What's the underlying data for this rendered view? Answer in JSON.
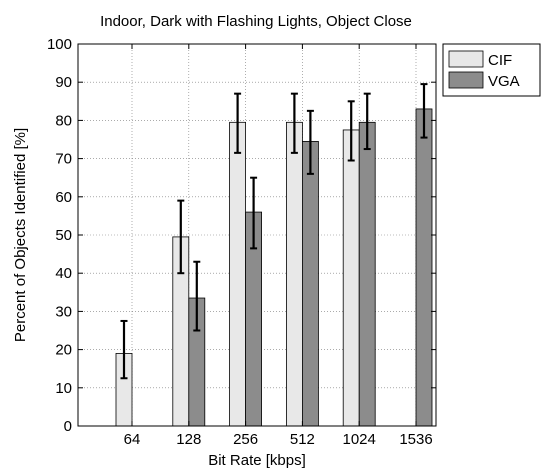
{
  "chart_data": {
    "type": "bar",
    "title": "Indoor, Dark with Flashing Lights, Object Close",
    "xlabel": "Bit Rate [kbps]",
    "ylabel": "Percent of Objects Identified [%]",
    "ylim": [
      0,
      100
    ],
    "yticks": [
      0,
      10,
      20,
      30,
      40,
      50,
      60,
      70,
      80,
      90,
      100
    ],
    "categories": [
      "64",
      "128",
      "256",
      "512",
      "1024",
      "1536"
    ],
    "grid": true,
    "legend": "outside-top-right",
    "series": [
      {
        "name": "CIF",
        "color": "#e8e8e8",
        "values": [
          19,
          49.5,
          79.5,
          79.5,
          77.5,
          null
        ],
        "err_low": [
          12.5,
          40,
          71.5,
          71.5,
          69.5,
          null
        ],
        "err_high": [
          27.5,
          59,
          87,
          87,
          85,
          null
        ]
      },
      {
        "name": "VGA",
        "color": "#8c8c8c",
        "values": [
          null,
          33.5,
          56,
          74.5,
          79.5,
          83
        ],
        "err_low": [
          null,
          25,
          46.5,
          66,
          72.5,
          75.5
        ],
        "err_high": [
          null,
          43,
          65,
          82.5,
          87,
          89.5
        ]
      }
    ]
  }
}
